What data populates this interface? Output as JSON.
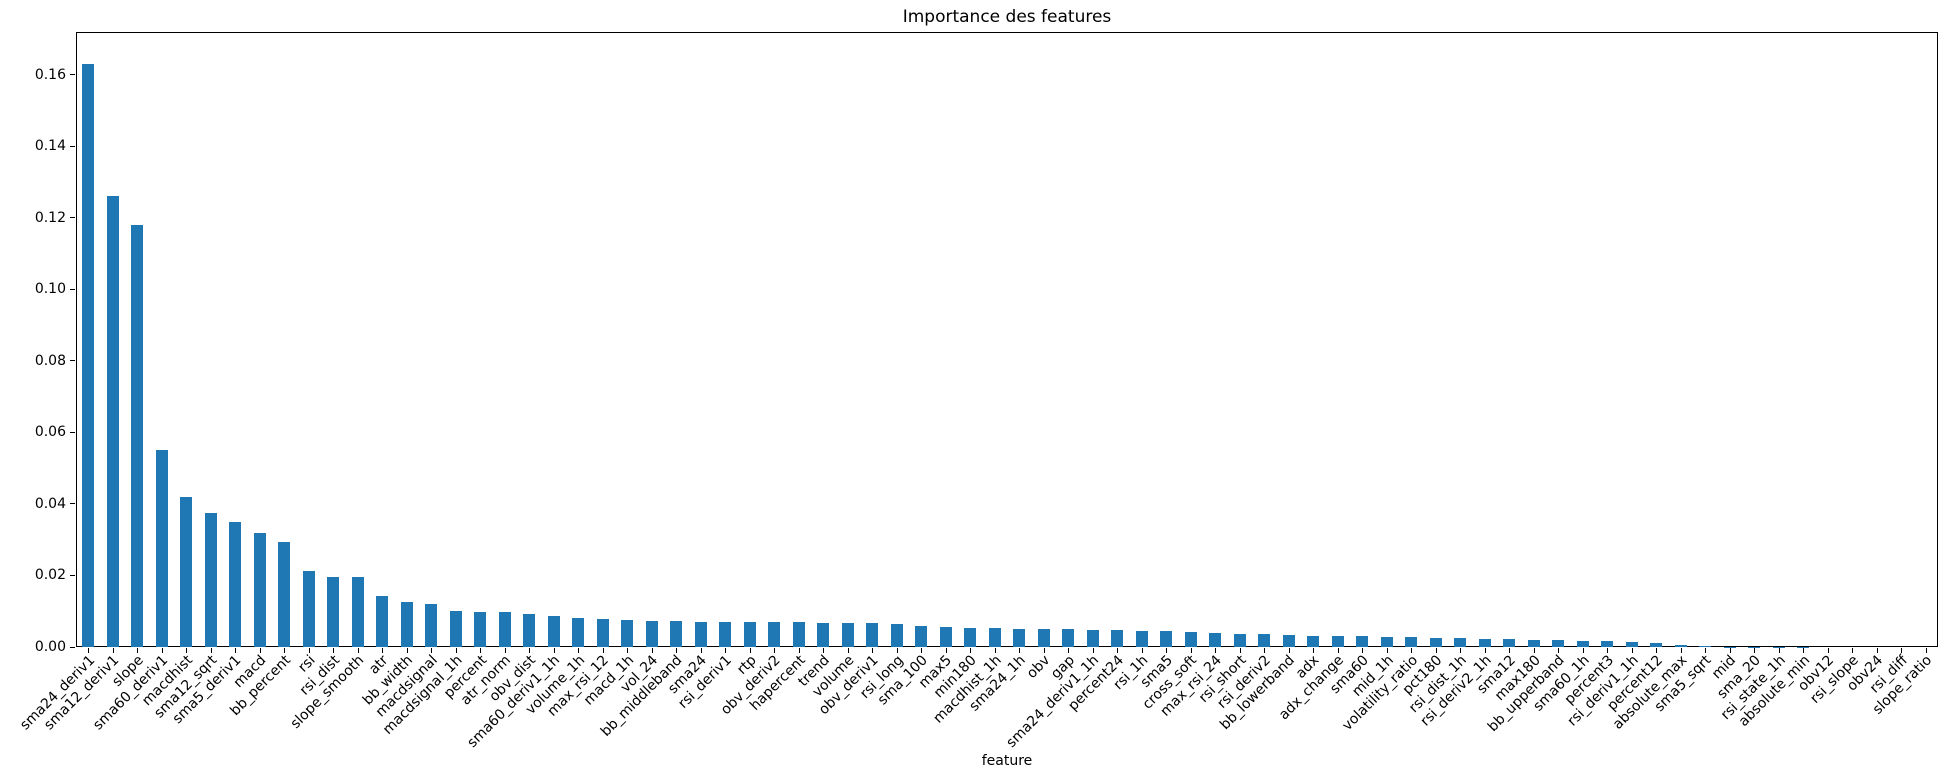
{
  "chart_data": {
    "type": "bar",
    "title": "Importance des features",
    "xlabel": "feature",
    "ylabel": "",
    "ylim": [
      0,
      0.172
    ],
    "yticks": [
      0.0,
      0.02,
      0.04,
      0.06,
      0.08,
      0.1,
      0.12,
      0.14,
      0.16
    ],
    "grid": false,
    "legend": "none",
    "bar_color": "#1f77b4",
    "categories": [
      "sma24_deriv1",
      "sma12_deriv1",
      "slope",
      "sma60_deriv1",
      "macdhist",
      "sma12_sqrt",
      "sma5_deriv1",
      "macd",
      "bb_percent",
      "rsi",
      "rsi_dist",
      "slope_smooth",
      "atr",
      "bb_width",
      "macdsignal",
      "macdsignal_1h",
      "percent",
      "atr_norm",
      "obv_dist",
      "sma60_deriv1_1h",
      "volume_1h",
      "max_rsi_12",
      "macd_1h",
      "vol_24",
      "bb_middleband",
      "sma24",
      "rsi_deriv1",
      "rtp",
      "obv_deriv2",
      "hapercent",
      "trend",
      "volume",
      "obv_deriv1",
      "rsi_long",
      "sma_100",
      "max5",
      "min180",
      "macdhist_1h",
      "sma24_1h",
      "obv",
      "gap",
      "sma24_deriv1_1h",
      "percent24",
      "rsi_1h",
      "sma5",
      "cross_soft",
      "max_rsi_24",
      "rsi_short",
      "rsi_deriv2",
      "bb_lowerband",
      "adx",
      "adx_change",
      "sma60",
      "mid_1h",
      "volatility_ratio",
      "pct180",
      "rsi_dist_1h",
      "rsi_deriv2_1h",
      "sma12",
      "max180",
      "bb_upperband",
      "sma60_1h",
      "percent3",
      "rsi_deriv1_1h",
      "percent12",
      "absolute_max",
      "sma5_sqrt",
      "mid",
      "sma_20",
      "rsi_state_1h",
      "absolute_min",
      "obv12",
      "rsi_slope",
      "obv24",
      "rsi_diff",
      "slope_ratio"
    ],
    "values": [
      0.163,
      0.126,
      0.118,
      0.055,
      0.042,
      0.0374,
      0.035,
      0.032,
      0.0293,
      0.0213,
      0.0196,
      0.0195,
      0.0142,
      0.0127,
      0.0121,
      0.01,
      0.0099,
      0.0098,
      0.0091,
      0.0086,
      0.0081,
      0.0077,
      0.0076,
      0.0074,
      0.0072,
      0.0071,
      0.007,
      0.007,
      0.0069,
      0.0069,
      0.0068,
      0.0068,
      0.0066,
      0.0065,
      0.0059,
      0.0057,
      0.0054,
      0.0053,
      0.005,
      0.0049,
      0.0049,
      0.0048,
      0.0047,
      0.0046,
      0.0045,
      0.0041,
      0.004,
      0.0037,
      0.0035,
      0.0034,
      0.0032,
      0.0031,
      0.003,
      0.0029,
      0.0028,
      0.0026,
      0.0025,
      0.0023,
      0.0022,
      0.002,
      0.0019,
      0.0018,
      0.0016,
      0.0014,
      0.0012,
      0.0006,
      0.0002,
      0.0001,
      0.0001,
      0.0001,
      0.0001,
      0.0,
      0.0,
      0.0,
      0.0,
      0.0
    ]
  }
}
